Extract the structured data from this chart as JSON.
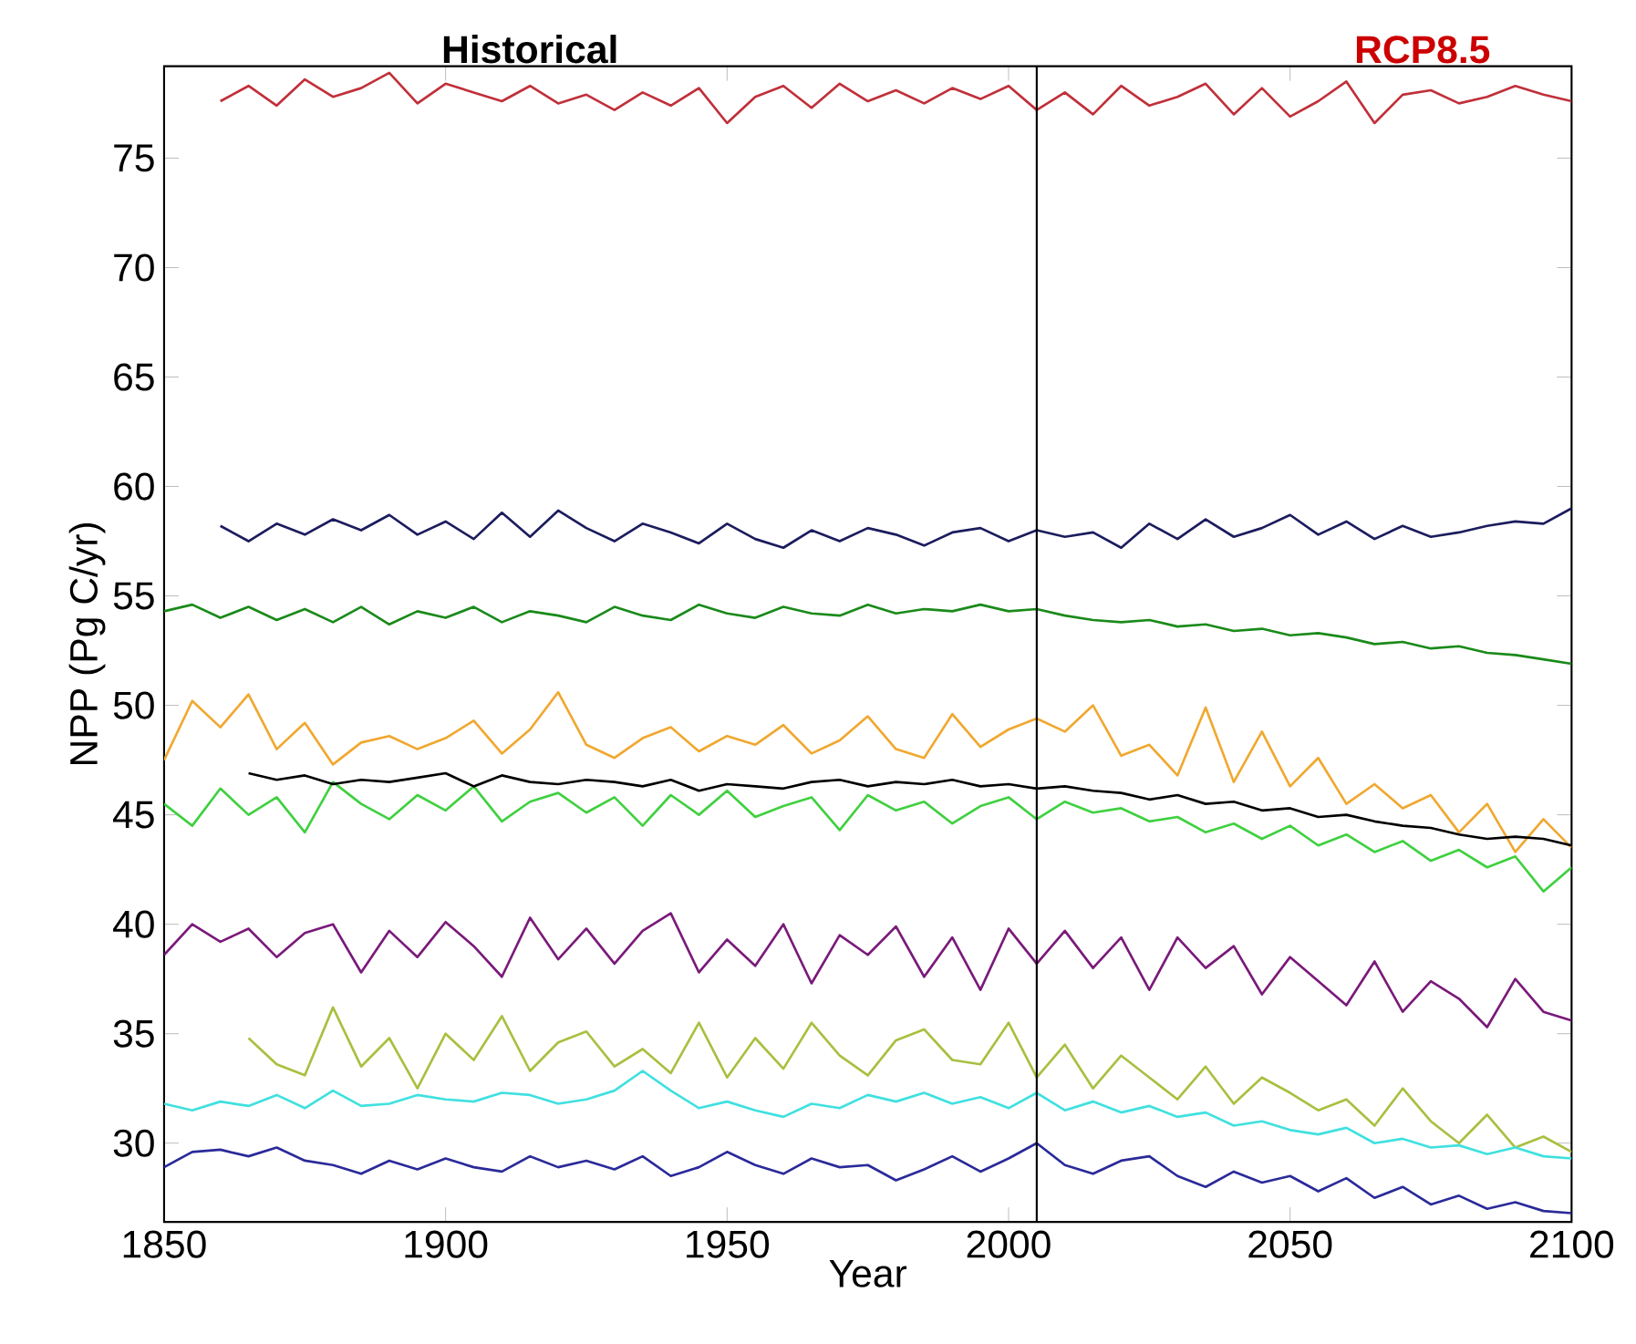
{
  "chart_data": {
    "type": "line",
    "xlabel": "Year",
    "ylabel": "NPP (Pg C/yr)",
    "annotations": [
      "Historical",
      "RCP8.5"
    ],
    "xlim": [
      1850,
      2100
    ],
    "xticks": [
      1850,
      1900,
      1950,
      2000,
      2050,
      2100
    ],
    "ylim": [
      26.4,
      79.2
    ],
    "yticks": [
      30,
      35,
      40,
      45,
      50,
      55,
      60,
      65,
      70,
      75
    ],
    "ref_lines": [
      {
        "axis": "x",
        "value": 2005,
        "color": "#000000"
      }
    ],
    "x": [
      1850,
      1855,
      1860,
      1865,
      1870,
      1875,
      1880,
      1885,
      1890,
      1895,
      1900,
      1905,
      1910,
      1915,
      1920,
      1925,
      1930,
      1935,
      1940,
      1945,
      1950,
      1955,
      1960,
      1965,
      1970,
      1975,
      1980,
      1985,
      1990,
      1995,
      2000,
      2005,
      2010,
      2015,
      2020,
      2025,
      2030,
      2035,
      2040,
      2045,
      2050,
      2055,
      2060,
      2065,
      2070,
      2075,
      2080,
      2085,
      2090,
      2095,
      2100
    ],
    "series": [
      {
        "color": "#c0303a",
        "values": [
          null,
          null,
          77.6,
          78.3,
          77.4,
          78.6,
          77.8,
          78.2,
          78.9,
          77.5,
          78.4,
          78.0,
          77.6,
          78.3,
          77.5,
          77.9,
          77.2,
          78.0,
          77.4,
          78.2,
          76.6,
          77.8,
          78.3,
          77.3,
          78.4,
          77.6,
          78.1,
          77.5,
          78.2,
          77.7,
          78.3,
          77.2,
          78.0,
          77.0,
          78.3,
          77.4,
          77.8,
          78.4,
          77.0,
          78.2,
          76.9,
          77.6,
          78.5,
          76.6,
          77.9,
          78.1,
          77.5,
          77.8,
          78.3,
          77.9,
          77.6
        ]
      },
      {
        "color": "#1c1c5e",
        "values": [
          null,
          null,
          58.2,
          57.5,
          58.3,
          57.8,
          58.5,
          58.0,
          58.7,
          57.8,
          58.4,
          57.6,
          58.8,
          57.7,
          58.9,
          58.1,
          57.5,
          58.3,
          57.9,
          57.4,
          58.3,
          57.6,
          57.2,
          58.0,
          57.5,
          58.1,
          57.8,
          57.3,
          57.9,
          58.1,
          57.5,
          58.0,
          57.7,
          57.9,
          57.2,
          58.3,
          57.6,
          58.5,
          57.7,
          58.1,
          58.7,
          57.8,
          58.4,
          57.6,
          58.2,
          57.7,
          57.9,
          58.2,
          58.4,
          58.3,
          59.0
        ]
      },
      {
        "color": "#1a8a1a",
        "values": [
          54.3,
          54.6,
          54.0,
          54.5,
          53.9,
          54.4,
          53.8,
          54.5,
          53.7,
          54.3,
          54.0,
          54.5,
          53.8,
          54.3,
          54.1,
          53.8,
          54.5,
          54.1,
          53.9,
          54.6,
          54.2,
          54.0,
          54.5,
          54.2,
          54.1,
          54.6,
          54.2,
          54.4,
          54.3,
          54.6,
          54.3,
          54.4,
          54.1,
          53.9,
          53.8,
          53.9,
          53.6,
          53.7,
          53.4,
          53.5,
          53.2,
          53.3,
          53.1,
          52.8,
          52.9,
          52.6,
          52.7,
          52.4,
          52.3,
          52.1,
          51.9
        ]
      },
      {
        "color": "#f0a830",
        "values": [
          47.5,
          50.2,
          49.0,
          50.5,
          48.0,
          49.2,
          47.3,
          48.3,
          48.6,
          48.0,
          48.5,
          49.3,
          47.8,
          48.9,
          50.6,
          48.2,
          47.6,
          48.5,
          49.0,
          47.9,
          48.6,
          48.2,
          49.1,
          47.8,
          48.4,
          49.5,
          48.0,
          47.6,
          49.6,
          48.1,
          48.9,
          49.4,
          48.8,
          50.0,
          47.7,
          48.2,
          46.8,
          49.9,
          46.5,
          48.8,
          46.3,
          47.6,
          45.5,
          46.4,
          45.3,
          45.9,
          44.2,
          45.5,
          43.3,
          44.8,
          43.5
        ]
      },
      {
        "color": "#40d040",
        "values": [
          45.5,
          44.5,
          46.2,
          45.0,
          45.8,
          44.2,
          46.5,
          45.5,
          44.8,
          45.9,
          45.2,
          46.3,
          44.7,
          45.6,
          46.0,
          45.1,
          45.8,
          44.5,
          45.9,
          45.0,
          46.1,
          44.9,
          45.4,
          45.8,
          44.3,
          45.9,
          45.2,
          45.6,
          44.6,
          45.4,
          45.8,
          44.8,
          45.6,
          45.1,
          45.3,
          44.7,
          44.9,
          44.2,
          44.6,
          43.9,
          44.5,
          43.6,
          44.1,
          43.3,
          43.8,
          42.9,
          43.4,
          42.6,
          43.1,
          41.5,
          42.6
        ]
      },
      {
        "color": "#000000",
        "values": [
          null,
          null,
          null,
          46.9,
          46.6,
          46.8,
          46.4,
          46.6,
          46.5,
          46.7,
          46.9,
          46.3,
          46.8,
          46.5,
          46.4,
          46.6,
          46.5,
          46.3,
          46.6,
          46.1,
          46.4,
          46.3,
          46.2,
          46.5,
          46.6,
          46.3,
          46.5,
          46.4,
          46.6,
          46.3,
          46.4,
          46.2,
          46.3,
          46.1,
          46.0,
          45.7,
          45.9,
          45.5,
          45.6,
          45.2,
          45.3,
          44.9,
          45.0,
          44.7,
          44.5,
          44.4,
          44.1,
          43.9,
          44.0,
          43.9,
          43.6
        ]
      },
      {
        "color": "#7a1a7a",
        "values": [
          38.6,
          40.0,
          39.2,
          39.8,
          38.5,
          39.6,
          40.0,
          37.8,
          39.7,
          38.5,
          40.1,
          39.0,
          37.6,
          40.3,
          38.4,
          39.8,
          38.2,
          39.7,
          40.5,
          37.8,
          39.3,
          38.1,
          40.0,
          37.3,
          39.5,
          38.6,
          39.9,
          37.6,
          39.4,
          37.0,
          39.8,
          38.2,
          39.7,
          38.0,
          39.4,
          37.0,
          39.4,
          38.0,
          39.0,
          36.8,
          38.5,
          37.4,
          36.3,
          38.3,
          36.0,
          37.4,
          36.6,
          35.3,
          37.5,
          36.0,
          35.6
        ]
      },
      {
        "color": "#a8c040",
        "values": [
          null,
          null,
          null,
          34.8,
          33.6,
          33.1,
          36.2,
          33.5,
          34.8,
          32.5,
          35.0,
          33.8,
          35.8,
          33.3,
          34.6,
          35.1,
          33.5,
          34.3,
          33.2,
          35.5,
          33.0,
          34.8,
          33.4,
          35.5,
          34.0,
          33.1,
          34.7,
          35.2,
          33.8,
          33.6,
          35.5,
          33.0,
          34.5,
          32.5,
          34.0,
          33.0,
          32.0,
          33.5,
          31.8,
          33.0,
          32.3,
          31.5,
          32.0,
          30.8,
          32.5,
          31.0,
          30.0,
          31.3,
          29.8,
          30.3,
          29.6
        ]
      },
      {
        "color": "#40e0e0",
        "values": [
          31.8,
          31.5,
          31.9,
          31.7,
          32.2,
          31.6,
          32.4,
          31.7,
          31.8,
          32.2,
          32.0,
          31.9,
          32.3,
          32.2,
          31.8,
          32.0,
          32.4,
          33.3,
          32.4,
          31.6,
          31.9,
          31.5,
          31.2,
          31.8,
          31.6,
          32.2,
          31.9,
          32.3,
          31.8,
          32.1,
          31.6,
          32.3,
          31.5,
          31.9,
          31.4,
          31.7,
          31.2,
          31.4,
          30.8,
          31.0,
          30.6,
          30.4,
          30.7,
          30.0,
          30.2,
          29.8,
          29.9,
          29.5,
          29.8,
          29.4,
          29.3
        ]
      },
      {
        "color": "#2a2a9a",
        "values": [
          28.9,
          29.6,
          29.7,
          29.4,
          29.8,
          29.2,
          29.0,
          28.6,
          29.2,
          28.8,
          29.3,
          28.9,
          28.7,
          29.4,
          28.9,
          29.2,
          28.8,
          29.4,
          28.5,
          28.9,
          29.6,
          29.0,
          28.6,
          29.3,
          28.9,
          29.0,
          28.3,
          28.8,
          29.4,
          28.7,
          29.3,
          30.0,
          29.0,
          28.6,
          29.2,
          29.4,
          28.5,
          28.0,
          28.7,
          28.2,
          28.5,
          27.8,
          28.4,
          27.5,
          28.0,
          27.2,
          27.6,
          27.0,
          27.3,
          26.9,
          26.8
        ]
      }
    ]
  }
}
